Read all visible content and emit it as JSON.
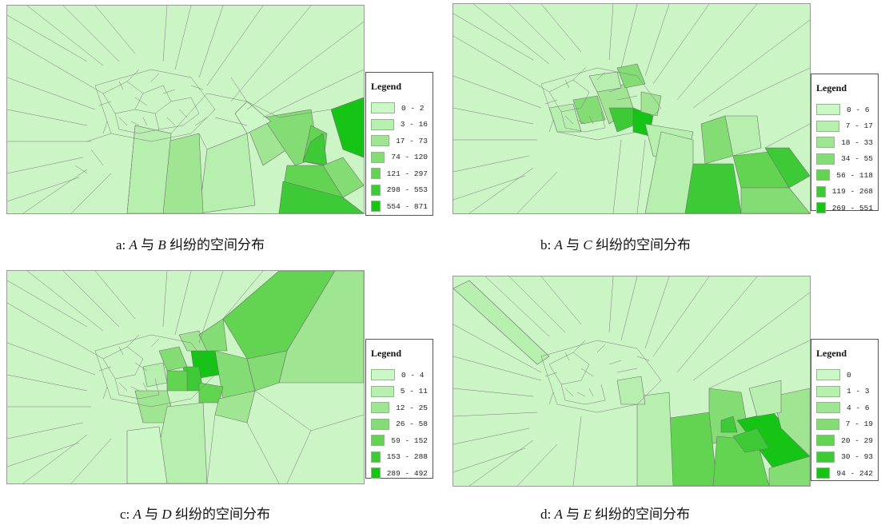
{
  "palette": [
    "#ccf8c8",
    "#b6efae",
    "#a0e592",
    "#84dc74",
    "#62d452",
    "#3ec936",
    "#15c414"
  ],
  "panels": [
    {
      "id": "a",
      "legend": {
        "title": "Legend",
        "items": [
          "0 - 2",
          "3 - 16",
          "17 - 73",
          "74 - 120",
          "121 - 297",
          "298 - 553",
          "554 - 871"
        ]
      },
      "caption": {
        "prefix": "a: ",
        "p1": "A",
        "mid": " 与 ",
        "p2": "B",
        "suffix": " 纠纷的空间分布"
      }
    },
    {
      "id": "b",
      "legend": {
        "title": "Legend",
        "items": [
          "0 - 6",
          "7 - 17",
          "18 - 33",
          "34 - 55",
          "56 - 118",
          "119 - 268",
          "269 - 551"
        ]
      },
      "caption": {
        "prefix": "b: ",
        "p1": "A",
        "mid": " 与 ",
        "p2": "C",
        "suffix": " 纠纷的空间分布"
      }
    },
    {
      "id": "c",
      "legend": {
        "title": "Legend",
        "items": [
          "0 - 4",
          "5 - 11",
          "12 - 25",
          "26 - 58",
          "59 - 152",
          "153 - 288",
          "289 - 492"
        ]
      },
      "caption": {
        "prefix": "c: ",
        "p1": "A",
        "mid": " 与 ",
        "p2": "D",
        "suffix": " 纠纷的空间分布"
      }
    },
    {
      "id": "d",
      "legend": {
        "title": "Legend",
        "items": [
          "0",
          "1 - 3",
          "4 - 6",
          "7 - 19",
          "20 - 29",
          "30 - 93",
          "94 - 242"
        ]
      },
      "caption": {
        "prefix": "d: ",
        "p1": "A",
        "mid": " 与 ",
        "p2": "E",
        "suffix": " 纠纷的空间分布"
      }
    }
  ]
}
